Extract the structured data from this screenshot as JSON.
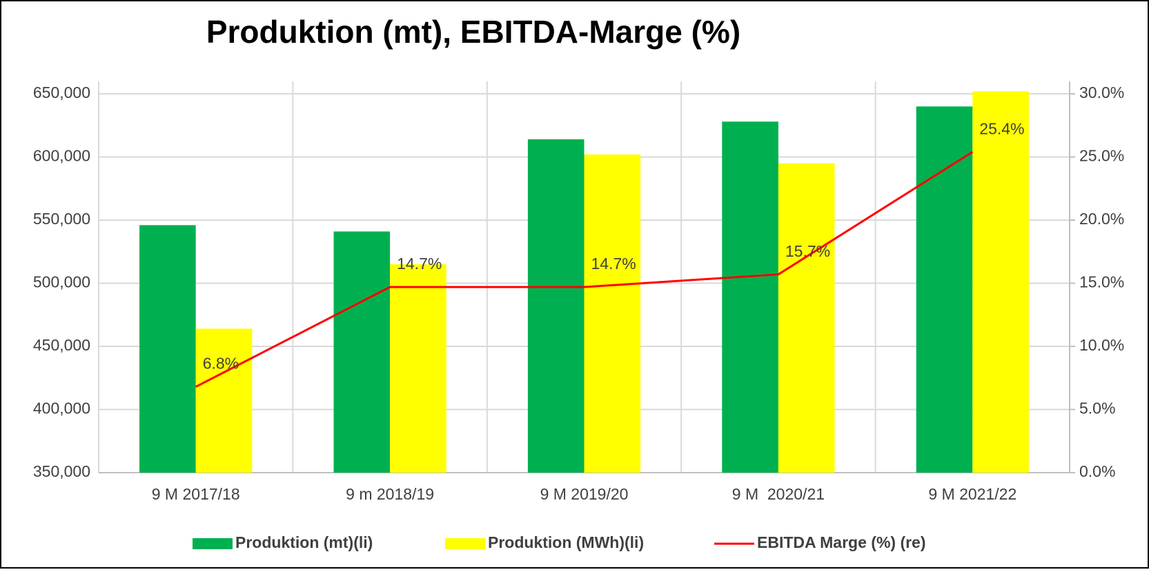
{
  "chart_data": {
    "type": "bar",
    "title": "Produktion (mt), EBITDA-Marge (%)",
    "categories": [
      "9 M 2017/18",
      "9 m 2018/19",
      "9 M 2019/20",
      "9 M  2020/21",
      "9 M 2021/22"
    ],
    "series": [
      {
        "name": "Produktion (mt)(li)",
        "type": "bar",
        "color": "#00b050",
        "values": [
          546000,
          541000,
          614000,
          628000,
          640000
        ]
      },
      {
        "name": "Produktion (MWh)(li)",
        "type": "bar",
        "color": "#ffff00",
        "values": [
          464000,
          515000,
          602000,
          595000,
          652000
        ]
      },
      {
        "name": "EBITDA Marge (%) (re)",
        "type": "line",
        "axis": "y2",
        "color": "#ff0000",
        "values": [
          6.8,
          14.7,
          14.7,
          15.7,
          25.4
        ],
        "value_labels": [
          "6.8%",
          "14.7%",
          "14.7%",
          "15.7%",
          "25.4%"
        ]
      }
    ],
    "ylim": [
      350000,
      650000
    ],
    "yticks": [
      {
        "value": 350000,
        "label": "350,000"
      },
      {
        "value": 400000,
        "label": "400,000"
      },
      {
        "value": 450000,
        "label": "450,000"
      },
      {
        "value": 500000,
        "label": "500,000"
      },
      {
        "value": 550000,
        "label": "550,000"
      },
      {
        "value": 600000,
        "label": "600,000"
      },
      {
        "value": 650000,
        "label": "650,000"
      }
    ],
    "y2lim": [
      0,
      30
    ],
    "y2ticks": [
      {
        "value": 0,
        "label": "0.0%"
      },
      {
        "value": 5,
        "label": "5.0%"
      },
      {
        "value": 10,
        "label": "10.0%"
      },
      {
        "value": 15,
        "label": "15.0%"
      },
      {
        "value": 20,
        "label": "20.0%"
      },
      {
        "value": 25,
        "label": "25.0%"
      },
      {
        "value": 30,
        "label": "30.0%"
      }
    ],
    "grid": true,
    "legend": "bottom"
  }
}
